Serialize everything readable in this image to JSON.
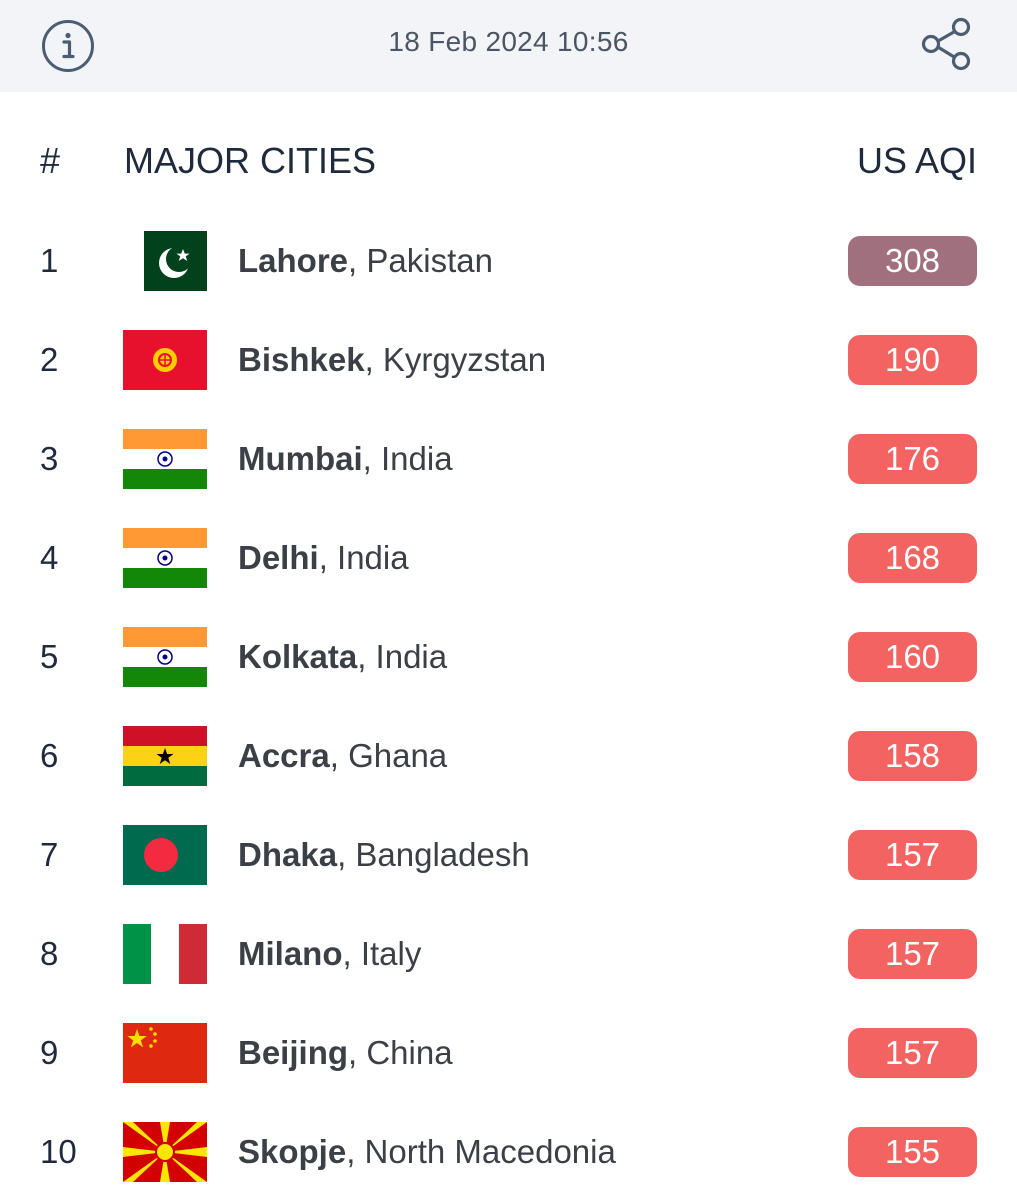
{
  "topbar": {
    "timestamp": "18 Feb 2024 10:56",
    "info_icon": "info-icon",
    "share_icon": "share-icon"
  },
  "header": {
    "rank_label": "#",
    "cities_label": "MAJOR CITIES",
    "aqi_label": "US AQI"
  },
  "colors": {
    "unhealthy": "#f26361",
    "hazardous": "#a0707f"
  },
  "rows": [
    {
      "rank": "1",
      "city": "Lahore",
      "country": ", Pakistan",
      "aqi": "308",
      "flag": "pakistan-flag"
    },
    {
      "rank": "2",
      "city": "Bishkek",
      "country": ", Kyrgyzstan",
      "aqi": "190",
      "flag": "kyrgyzstan-flag"
    },
    {
      "rank": "3",
      "city": "Mumbai",
      "country": ", India",
      "aqi": "176",
      "flag": "india-flag"
    },
    {
      "rank": "4",
      "city": "Delhi",
      "country": ", India",
      "aqi": "168",
      "flag": "india-flag"
    },
    {
      "rank": "5",
      "city": "Kolkata",
      "country": ", India",
      "aqi": "160",
      "flag": "india-flag"
    },
    {
      "rank": "6",
      "city": "Accra",
      "country": ", Ghana",
      "aqi": "158",
      "flag": "ghana-flag"
    },
    {
      "rank": "7",
      "city": "Dhaka",
      "country": ", Bangladesh",
      "aqi": "157",
      "flag": "bangladesh-flag"
    },
    {
      "rank": "8",
      "city": "Milano",
      "country": ", Italy",
      "aqi": "157",
      "flag": "italy-flag"
    },
    {
      "rank": "9",
      "city": "Beijing",
      "country": ", China",
      "aqi": "157",
      "flag": "china-flag"
    },
    {
      "rank": "10",
      "city": "Skopje",
      "country": ", North Macedonia",
      "aqi": "155",
      "flag": "north-macedonia-flag"
    }
  ]
}
